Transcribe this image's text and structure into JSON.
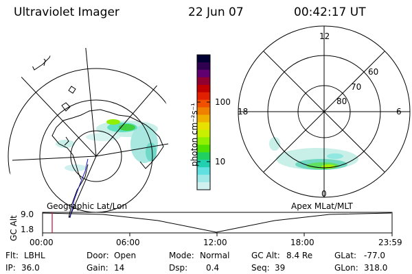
{
  "header": {
    "instrument": "Ultraviolet Imager",
    "date": "22 Jun 07",
    "time": "00:42:17 UT"
  },
  "panels": {
    "left_caption": "Geographic Lat/Lon",
    "right_caption": "Apex MLat/MLT"
  },
  "polar_plot": {
    "mlt_labels": [
      "12",
      "18",
      "6",
      "0"
    ],
    "mlat_labels": [
      "60",
      "70",
      "80"
    ]
  },
  "colorbar": {
    "unit_label": "photon cm⁻²s⁻¹",
    "ticks": [
      "100",
      "10"
    ],
    "colors": [
      "#000033",
      "#300050",
      "#600070",
      "#900030",
      "#c00000",
      "#e02000",
      "#f05000",
      "#f08000",
      "#f0b000",
      "#e8e000",
      "#c8f000",
      "#90f000",
      "#50e000",
      "#20d060",
      "#20d0b0",
      "#60e0e0",
      "#a0e8e8",
      "#d0f0f0"
    ]
  },
  "altitude_plot": {
    "y_label": "GC Alt",
    "y_ticks": [
      "9.0",
      "1.8"
    ],
    "x_ticks": [
      "00:00",
      "06:00",
      "12:00",
      "18:00",
      "23:59"
    ]
  },
  "status": {
    "row1": [
      {
        "label": "Flt:",
        "value": "LBHL"
      },
      {
        "label": "Door:",
        "value": "Open"
      },
      {
        "label": "Mode:",
        "value": "Normal"
      },
      {
        "label": "GC Alt:",
        "value": "8.4 Re"
      },
      {
        "label": "GLat:",
        "value": "-77.0"
      }
    ],
    "row2": [
      {
        "label": "IP:",
        "value": "36.0"
      },
      {
        "label": "Gain:",
        "value": "14"
      },
      {
        "label": "Dsp:",
        "value": "0.4"
      },
      {
        "label": "Seq:",
        "value": "39"
      },
      {
        "label": "GLon:",
        "value": "318.0"
      }
    ]
  }
}
